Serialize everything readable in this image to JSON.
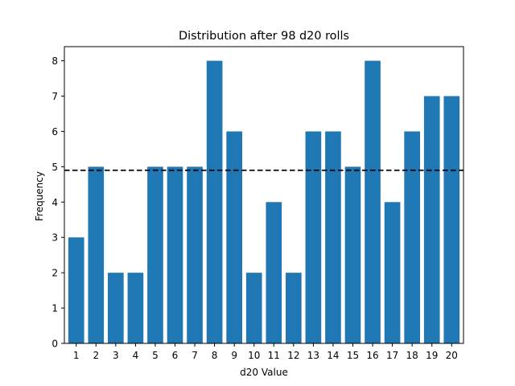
{
  "chart_data": {
    "type": "bar",
    "title": "Distribution after 98 d20 rolls",
    "xlabel": "d20 Value",
    "ylabel": "Frequency",
    "categories": [
      "1",
      "2",
      "3",
      "4",
      "5",
      "6",
      "7",
      "8",
      "9",
      "10",
      "11",
      "12",
      "13",
      "14",
      "15",
      "16",
      "17",
      "18",
      "19",
      "20"
    ],
    "values": [
      3,
      5,
      2,
      2,
      5,
      5,
      5,
      8,
      6,
      2,
      4,
      2,
      6,
      6,
      5,
      8,
      4,
      6,
      7,
      7
    ],
    "ylim": [
      0,
      8.4
    ],
    "yticks": [
      0,
      1,
      2,
      3,
      4,
      5,
      6,
      7,
      8
    ],
    "reference_line": {
      "value": 4.9,
      "style": "dashed",
      "color": "#000000"
    },
    "bar_color": "#1f77b4",
    "grid": false,
    "legend": "none"
  }
}
